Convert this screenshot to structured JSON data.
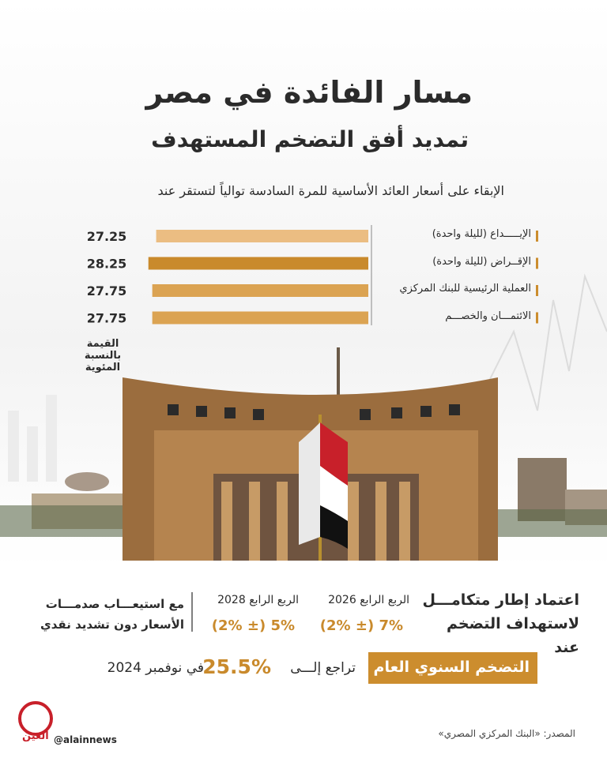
{
  "header": {
    "title": "مسار الفائدة في مصر",
    "subtitle": "تمديد أفق التضخم المستهدف"
  },
  "chart_data": {
    "type": "bar",
    "orientation": "horizontal",
    "title": "الإبقاء على أسعار العائد الأساسية للمرة السادسة توالياً لتستقر عند",
    "categories": [
      "الإيـــــداع (لليلة واحدة)",
      "الإقــراض (لليلة واحدة)",
      "العملية الرئيسية للبنك المركزي",
      "الائتمـــان والخصـــم"
    ],
    "values": [
      27.25,
      28.25,
      27.75,
      27.75
    ],
    "colors": [
      "#ebbd82",
      "#c98a2c",
      "#dba352",
      "#dba352"
    ],
    "value_axis_label": "القيمة بالنسبة المئوية"
  },
  "framework": {
    "title": "اعتماد إطار متكامـــل لاستهداف التضخم عند",
    "targets": [
      {
        "period": "الربع الرابع 2026",
        "target": "7% (± 2%)"
      },
      {
        "period": "الربع الرابع 2028",
        "target": "5% (± 2%)"
      }
    ],
    "note": "مع استيعـــاب صدمـــات الأسعار دون تشديد نقدي"
  },
  "inflation": {
    "label": "التضخم السنوي العام",
    "text": "تراجع إلـــى",
    "value": "25.5%",
    "date": "في نوفمبر 2024"
  },
  "footer": {
    "source": "المصدر: «البنك المركزي المصري»",
    "handle": "@alainnews",
    "logo": "العين"
  }
}
